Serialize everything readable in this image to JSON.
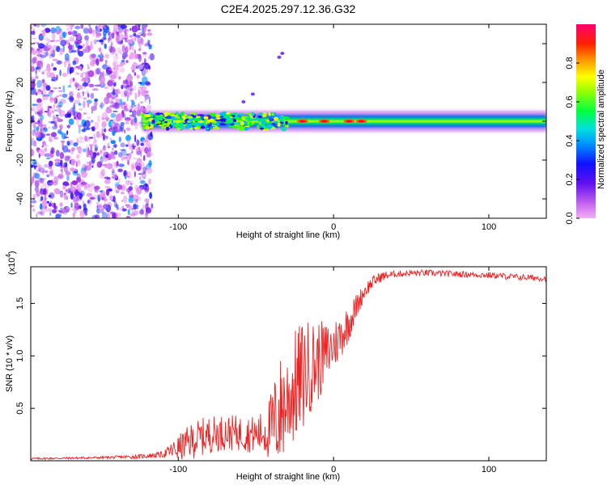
{
  "title": "C2E4.2025.297.12.36.G32",
  "chart_data": [
    {
      "type": "heatmap",
      "name": "spectrogram",
      "xlabel": "Height of straight line (km)",
      "ylabel": "Frequency (Hz)",
      "xlim": [
        -195,
        137
      ],
      "ylim": [
        -50,
        50
      ],
      "xticks": [
        -100,
        0,
        100
      ],
      "xtick_labels": [
        "-100",
        "0",
        "100"
      ],
      "yticks": [
        -40,
        -20,
        0,
        20,
        40
      ],
      "ytick_labels": [
        "-40",
        "-20",
        "0",
        "20",
        "40"
      ],
      "colorbar": {
        "label": "Normalized spectral amplitude",
        "range": [
          0,
          1
        ],
        "ticks": [
          0.0,
          0.2,
          0.4,
          0.6,
          0.8
        ],
        "tick_labels": [
          "0.0",
          "0.2",
          "0.4",
          "0.6",
          "0.8"
        ],
        "colors": [
          "#f0a0f0",
          "#9020e0",
          "#2000ff",
          "#00b0ff",
          "#00e0c0",
          "#00ff00",
          "#c0ff00",
          "#ffff00",
          "#ff8000",
          "#ff0000",
          "#ff0060"
        ]
      },
      "features": {
        "noise_region_x": [
          -195,
          -120
        ],
        "band_start_x": -123,
        "band_center_freq": 0,
        "band_half_width_hz": 2.5,
        "hotspots_x": [
          -20,
          -6,
          10,
          18
        ]
      }
    },
    {
      "type": "line",
      "name": "snr",
      "xlabel": "Height of straight line (km)",
      "ylabel": "SNR (10 * v/v)",
      "multiplier": "(x10",
      "multiplier_exp": "4",
      "multiplier_close": ")",
      "xlim": [
        -195,
        137
      ],
      "ylim": [
        0,
        1.85
      ],
      "xticks": [
        -100,
        0,
        100
      ],
      "xtick_labels": [
        "-100",
        "0",
        "100"
      ],
      "yticks": [
        0.5,
        1.0,
        1.5
      ],
      "ytick_labels": [
        "0.5",
        "1.0",
        "1.5"
      ],
      "color": "#f02020",
      "series": [
        {
          "name": "SNR",
          "x": [
            -195,
            -150,
            -125,
            -110,
            -100,
            -90,
            -80,
            -70,
            -60,
            -50,
            -45,
            -40,
            -35,
            -30,
            -25,
            -20,
            -15,
            -10,
            -5,
            0,
            5,
            10,
            15,
            20,
            25,
            30,
            35,
            40,
            50,
            60,
            80,
            100,
            120,
            137
          ],
          "y": [
            0.02,
            0.03,
            0.04,
            0.06,
            0.12,
            0.2,
            0.25,
            0.27,
            0.26,
            0.25,
            0.27,
            0.32,
            0.45,
            0.58,
            0.7,
            0.8,
            0.9,
            0.95,
            1.02,
            1.1,
            1.2,
            1.32,
            1.48,
            1.62,
            1.7,
            1.75,
            1.77,
            1.78,
            1.79,
            1.79,
            1.78,
            1.77,
            1.75,
            1.74
          ],
          "spread": [
            0.01,
            0.01,
            0.02,
            0.03,
            0.12,
            0.18,
            0.18,
            0.17,
            0.17,
            0.18,
            0.22,
            0.35,
            0.55,
            0.5,
            0.55,
            0.55,
            0.45,
            0.4,
            0.3,
            0.25,
            0.22,
            0.18,
            0.12,
            0.08,
            0.06,
            0.05,
            0.04,
            0.03,
            0.03,
            0.03,
            0.03,
            0.03,
            0.03,
            0.03
          ]
        }
      ]
    }
  ]
}
